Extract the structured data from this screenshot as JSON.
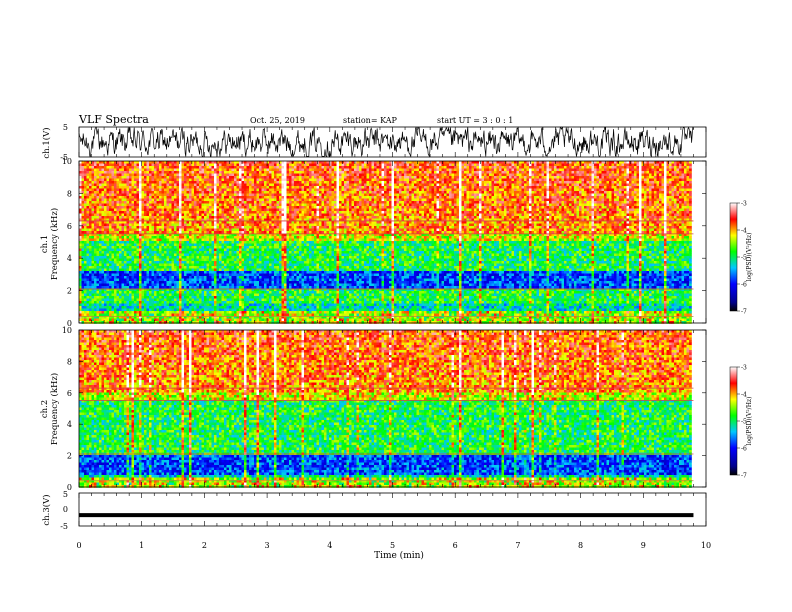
{
  "header": {
    "title": "VLF Spectra",
    "date": "Oct. 25, 2019",
    "station": "station= KAP",
    "start": "start UT = 3 : 0 : 1"
  },
  "chart_data": [
    {
      "type": "line",
      "name": "ch1-waveform",
      "ylabel": "ch.1(V)",
      "ylim": [
        -5,
        5
      ],
      "yticks": [
        "5",
        "-5"
      ],
      "xlim": [
        0,
        10
      ]
    },
    {
      "type": "heatmap",
      "name": "ch1-spectrogram",
      "ylabel": "ch.1\nFrequency (kHz)",
      "ylabel_line1": "ch.1",
      "ylabel_line2": "Frequency (kHz)",
      "ylim": [
        0,
        10
      ],
      "yticks": [
        "0",
        "2",
        "4",
        "6",
        "8",
        "10"
      ],
      "xlim": [
        0,
        9.8
      ],
      "colorbar": {
        "label": "log(PSD)(V²/Hz)",
        "range": [
          -7,
          -3
        ],
        "ticks": [
          "-3",
          "-4",
          "-5",
          "-6",
          "-7"
        ]
      },
      "bands_kHz": {
        "high_power_above": 5.5,
        "mid_green": [
          1.2,
          5.0
        ],
        "low_blue": [
          2.2,
          3.2
        ]
      }
    },
    {
      "type": "heatmap",
      "name": "ch2-spectrogram",
      "ylabel": "ch.2\nFrequency (kHz)",
      "ylabel_line1": "ch.2",
      "ylabel_line2": "Frequency (kHz)",
      "ylim": [
        0,
        10
      ],
      "yticks": [
        "0",
        "2",
        "4",
        "6",
        "8",
        "10"
      ],
      "xlim": [
        0,
        9.8
      ],
      "colorbar": {
        "label": "log(PSD)(V²/Hz)",
        "range": [
          -7,
          -3
        ],
        "ticks": [
          "-3",
          "-4",
          "-5",
          "-6",
          "-7"
        ]
      },
      "bands_kHz": {
        "high_power_above": 6.0,
        "mid_green": [
          1.5,
          5.5
        ],
        "low_blue": [
          0.8,
          2.0
        ]
      }
    },
    {
      "type": "line",
      "name": "ch3-waveform",
      "ylabel": "ch.3(V)",
      "ylim": [
        -5,
        5
      ],
      "yticks": [
        "5",
        "0",
        "-5"
      ],
      "constant_value": -1.7,
      "xlim": [
        0,
        10
      ]
    }
  ],
  "xaxis": {
    "label": "Time (min)",
    "ticks": [
      "0",
      "1",
      "2",
      "3",
      "4",
      "5",
      "6",
      "7",
      "8",
      "9",
      "10"
    ],
    "range": [
      0,
      10
    ]
  }
}
